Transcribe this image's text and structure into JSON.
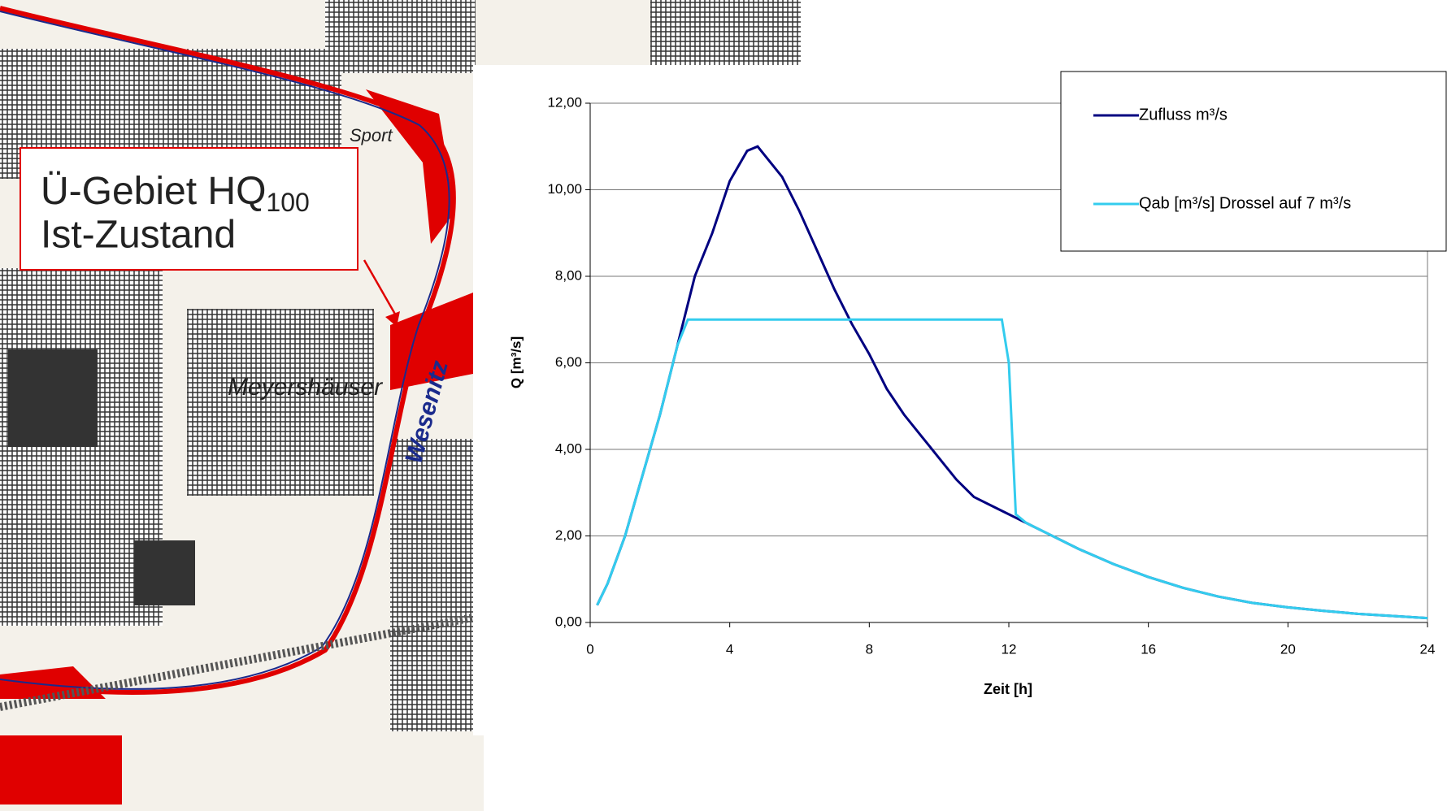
{
  "map": {
    "callout": {
      "line1": "Ü-Gebiet HQ",
      "sub": "100",
      "line2": "Ist-Zustand"
    },
    "labels": [
      "Meyershäuser",
      "Wesenitz",
      "Sport"
    ]
  },
  "chart_data": {
    "type": "line",
    "xlabel": "Zeit [h]",
    "ylabel": "Q [m³/s]",
    "xlim": [
      0,
      24
    ],
    "xticks": [
      0,
      4,
      8,
      12,
      16,
      20,
      24
    ],
    "ylim": [
      0,
      12
    ],
    "yticks": [
      {
        "value": 0,
        "label": "0,00"
      },
      {
        "value": 2,
        "label": "2,00"
      },
      {
        "value": 4,
        "label": "4,00"
      },
      {
        "value": 6,
        "label": "6,00"
      },
      {
        "value": 8,
        "label": "8,00"
      },
      {
        "value": 10,
        "label": "10,00"
      },
      {
        "value": 12,
        "label": "12,00"
      }
    ],
    "grid": true,
    "legend": "upper right",
    "series": [
      {
        "name": "Zufluss m³/s",
        "color": "#000080",
        "x": [
          0.2,
          0.5,
          1,
          1.5,
          2,
          2.5,
          3,
          3.5,
          4,
          4.5,
          4.8,
          5,
          5.5,
          6,
          6.5,
          7,
          7.5,
          8,
          8.5,
          9,
          9.5,
          10,
          10.5,
          11,
          11.5,
          12,
          12.5,
          13,
          14,
          15,
          16,
          17,
          18,
          19,
          20,
          21,
          22,
          23,
          24
        ],
        "values": [
          0.4,
          0.9,
          2,
          3.4,
          4.8,
          6.4,
          8.0,
          9.0,
          10.2,
          10.9,
          11.0,
          10.8,
          10.3,
          9.5,
          8.6,
          7.7,
          6.9,
          6.2,
          5.4,
          4.8,
          4.3,
          3.8,
          3.3,
          2.9,
          2.7,
          2.5,
          2.3,
          2.1,
          1.7,
          1.35,
          1.05,
          0.8,
          0.6,
          0.45,
          0.35,
          0.27,
          0.2,
          0.15,
          0.1
        ]
      },
      {
        "name": "Qab [m³/s] Drossel auf 7 m³/s",
        "color": "#33ccee",
        "x": [
          0.2,
          0.5,
          1,
          1.5,
          2,
          2.5,
          2.8,
          11.8,
          12,
          12.2,
          12.5,
          13,
          14,
          15,
          16,
          17,
          18,
          19,
          20,
          21,
          22,
          23,
          24
        ],
        "values": [
          0.4,
          0.9,
          2,
          3.4,
          4.8,
          6.4,
          7.0,
          7.0,
          6.0,
          2.5,
          2.3,
          2.1,
          1.7,
          1.35,
          1.05,
          0.8,
          0.6,
          0.45,
          0.35,
          0.27,
          0.2,
          0.15,
          0.1
        ]
      }
    ]
  }
}
